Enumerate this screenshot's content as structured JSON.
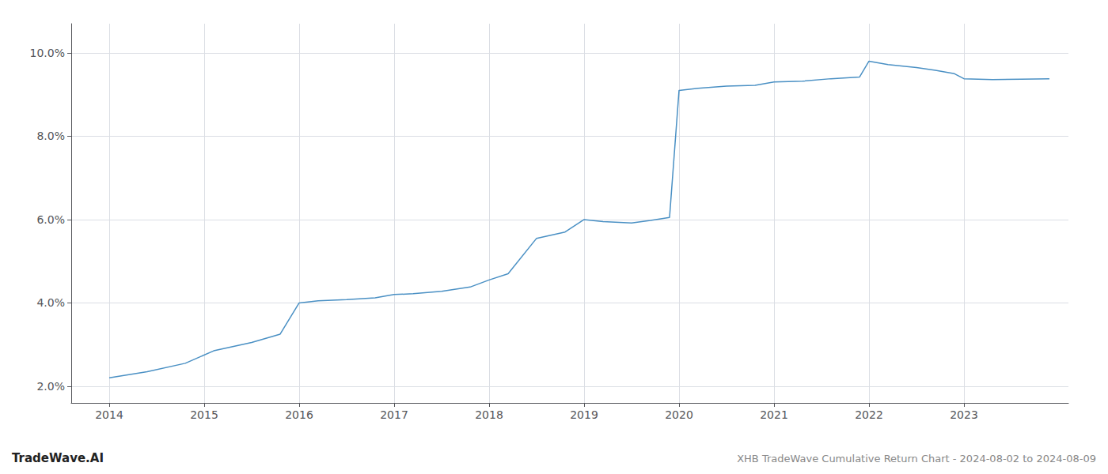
{
  "chart_data": {
    "type": "line",
    "title": "XHB TradeWave Cumulative Return Chart - 2024-08-02 to 2024-08-09",
    "annotations": [
      "TradeWave.AI"
    ],
    "x": [
      2014.0,
      2014.4,
      2014.8,
      2015.1,
      2015.5,
      2015.8,
      2016.0,
      2016.2,
      2016.5,
      2016.8,
      2017.0,
      2017.2,
      2017.5,
      2017.8,
      2018.0,
      2018.2,
      2018.5,
      2018.8,
      2019.0,
      2019.2,
      2019.5,
      2019.7,
      2019.9,
      2020.0,
      2020.2,
      2020.5,
      2020.8,
      2021.0,
      2021.3,
      2021.6,
      2021.9,
      2022.0,
      2022.2,
      2022.5,
      2022.7,
      2022.9,
      2023.0,
      2023.3,
      2023.6,
      2023.9
    ],
    "values": [
      2.2,
      2.35,
      2.55,
      2.85,
      3.05,
      3.25,
      4.0,
      4.05,
      4.08,
      4.12,
      4.2,
      4.22,
      4.28,
      4.38,
      4.55,
      4.7,
      5.55,
      5.7,
      6.0,
      5.95,
      5.92,
      5.98,
      6.05,
      9.1,
      9.15,
      9.2,
      9.22,
      9.3,
      9.32,
      9.38,
      9.42,
      9.8,
      9.72,
      9.65,
      9.58,
      9.5,
      9.38,
      9.36,
      9.37,
      9.38
    ],
    "color": "#4a90c4",
    "xlim": [
      2013.6,
      2024.1
    ],
    "xticks": [
      2014,
      2015,
      2016,
      2017,
      2018,
      2019,
      2020,
      2021,
      2022,
      2023
    ],
    "ylim": [
      1.6,
      10.7
    ],
    "yticks": [
      {
        "value": 2.0,
        "label": "2.0%"
      },
      {
        "value": 4.0,
        "label": "4.0%"
      },
      {
        "value": 6.0,
        "label": "6.0%"
      },
      {
        "value": 8.0,
        "label": "8.0%"
      },
      {
        "value": 10.0,
        "label": "10.0%"
      }
    ],
    "grid": true
  }
}
